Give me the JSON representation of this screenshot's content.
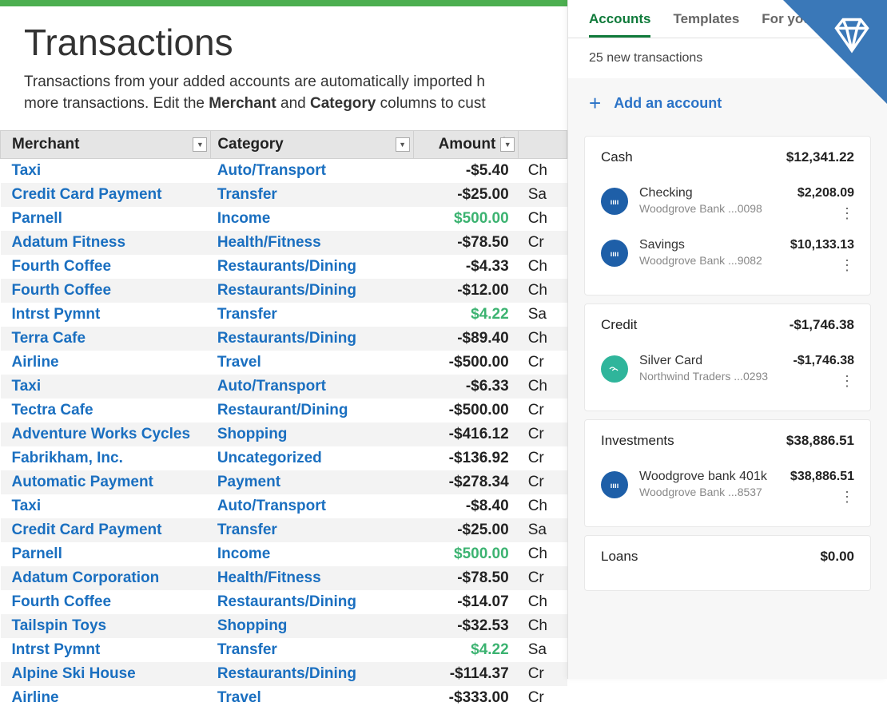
{
  "colors": {
    "topBar": "#4caf50",
    "link": "#1a6fc0",
    "positive": "#3cb371",
    "headerBg": "#e5e5e5",
    "altRow": "#f3f3f3",
    "tabActive": "#0f7a3a",
    "addAccount": "#2b73c7",
    "ribbon": "#3a78b8",
    "bankIcon": "#1e5fa8",
    "creditIcon": "#2fb59b"
  },
  "page": {
    "title": "Transactions",
    "descPrefix": "Transactions from your added accounts are automatically imported h",
    "descLine2a": "more transactions. Edit the ",
    "descBold1": "Merchant",
    "descMid": " and ",
    "descBold2": "Category",
    "descLine2b": " columns to cust"
  },
  "table": {
    "headers": {
      "merchant": "Merchant",
      "category": "Category",
      "amount": "Amount $",
      "account": ""
    },
    "rows": [
      {
        "merchant": "Taxi",
        "category": "Auto/Transport",
        "amount": "-$5.40",
        "positive": false,
        "acct": "Ch"
      },
      {
        "merchant": "Credit Card Payment",
        "category": "Transfer",
        "amount": "-$25.00",
        "positive": false,
        "acct": "Sa"
      },
      {
        "merchant": "Parnell",
        "category": "Income",
        "amount": "$500.00",
        "positive": true,
        "acct": "Ch"
      },
      {
        "merchant": "Adatum Fitness",
        "category": "Health/Fitness",
        "amount": "-$78.50",
        "positive": false,
        "acct": "Cr"
      },
      {
        "merchant": "Fourth Coffee",
        "category": "Restaurants/Dining",
        "amount": "-$4.33",
        "positive": false,
        "acct": "Ch"
      },
      {
        "merchant": "Fourth Coffee",
        "category": "Restaurants/Dining",
        "amount": "-$12.00",
        "positive": false,
        "acct": "Ch"
      },
      {
        "merchant": "Intrst Pymnt",
        "category": "Transfer",
        "amount": "$4.22",
        "positive": true,
        "acct": "Sa"
      },
      {
        "merchant": "Terra Cafe",
        "category": "Restaurants/Dining",
        "amount": "-$89.40",
        "positive": false,
        "acct": "Ch"
      },
      {
        "merchant": "Airline",
        "category": "Travel",
        "amount": "-$500.00",
        "positive": false,
        "acct": "Cr"
      },
      {
        "merchant": "Taxi",
        "category": "Auto/Transport",
        "amount": "-$6.33",
        "positive": false,
        "acct": "Ch"
      },
      {
        "merchant": "Tectra Cafe",
        "category": "Restaurant/Dining",
        "amount": "-$500.00",
        "positive": false,
        "acct": "Cr"
      },
      {
        "merchant": "Adventure Works Cycles",
        "category": "Shopping",
        "amount": "-$416.12",
        "positive": false,
        "acct": "Cr"
      },
      {
        "merchant": "Fabrikham, Inc.",
        "category": "Uncategorized",
        "amount": "-$136.92",
        "positive": false,
        "acct": "Cr"
      },
      {
        "merchant": "Automatic Payment",
        "category": "Payment",
        "amount": "-$278.34",
        "positive": false,
        "acct": "Cr"
      },
      {
        "merchant": "Taxi",
        "category": "Auto/Transport",
        "amount": "-$8.40",
        "positive": false,
        "acct": "Ch"
      },
      {
        "merchant": "Credit Card Payment",
        "category": "Transfer",
        "amount": "-$25.00",
        "positive": false,
        "acct": "Sa"
      },
      {
        "merchant": "Parnell",
        "category": "Income",
        "amount": "$500.00",
        "positive": true,
        "acct": "Ch"
      },
      {
        "merchant": "Adatum Corporation",
        "category": "Health/Fitness",
        "amount": "-$78.50",
        "positive": false,
        "acct": "Cr"
      },
      {
        "merchant": "Fourth Coffee",
        "category": "Restaurants/Dining",
        "amount": "-$14.07",
        "positive": false,
        "acct": "Ch"
      },
      {
        "merchant": "Tailspin Toys",
        "category": "Shopping",
        "amount": "-$32.53",
        "positive": false,
        "acct": "Ch"
      },
      {
        "merchant": "Intrst Pymnt",
        "category": "Transfer",
        "amount": "$4.22",
        "positive": true,
        "acct": "Sa"
      },
      {
        "merchant": "Alpine Ski House",
        "category": "Restaurants/Dining",
        "amount": "-$114.37",
        "positive": false,
        "acct": "Cr"
      },
      {
        "merchant": "Airline",
        "category": "Travel",
        "amount": "-$333.00",
        "positive": false,
        "acct": "Cr"
      }
    ]
  },
  "sidebar": {
    "tabs": [
      {
        "label": "Accounts",
        "active": true
      },
      {
        "label": "Templates",
        "active": false
      },
      {
        "label": "For you",
        "active": false
      }
    ],
    "newTransactions": "25 new transactions",
    "addAccount": "Add an account",
    "groups": [
      {
        "name": "Cash",
        "total": "$12,341.22",
        "items": [
          {
            "name": "Checking",
            "sub": "Woodgrove Bank ...0098",
            "balance": "$2,208.09",
            "iconColor": "#1e5fa8",
            "iconType": "bank"
          },
          {
            "name": "Savings",
            "sub": "Woodgrove Bank ...9082",
            "balance": "$10,133.13",
            "iconColor": "#1e5fa8",
            "iconType": "bank"
          }
        ]
      },
      {
        "name": "Credit",
        "total": "-$1,746.38",
        "items": [
          {
            "name": "Silver Card",
            "sub": "Northwind Traders ...0293",
            "balance": "-$1,746.38",
            "iconColor": "#2fb59b",
            "iconType": "credit"
          }
        ]
      },
      {
        "name": "Investments",
        "total": "$38,886.51",
        "items": [
          {
            "name": "Woodgrove bank 401k",
            "sub": "Woodgrove Bank ...8537",
            "balance": "$38,886.51",
            "iconColor": "#1e5fa8",
            "iconType": "bank"
          }
        ]
      },
      {
        "name": "Loans",
        "total": "$0.00",
        "items": []
      }
    ]
  }
}
